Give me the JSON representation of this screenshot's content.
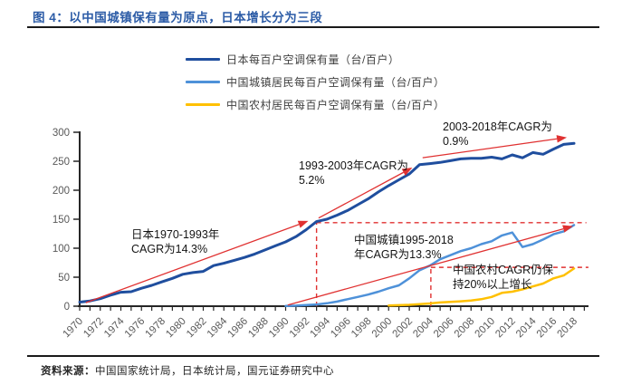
{
  "title": "图 4：以中国城镇保有量为原点，日本增长分为三段",
  "legend": [
    {
      "label": "日本每百户空调保有量（台/百户）",
      "color": "#1F4E9E"
    },
    {
      "label": "中国城镇居民每百户空调保有量（台/百户）",
      "color": "#4E91D9"
    },
    {
      "label": "中国农村居民每百户空调保有量（台/百户）",
      "color": "#FFC000"
    }
  ],
  "chart_data": {
    "type": "line",
    "title": "以中国城镇保有量为原点，日本增长分为三段",
    "xlabel": "",
    "ylabel": "",
    "ylim": [
      0,
      300
    ],
    "yticks": [
      0,
      50,
      100,
      150,
      200,
      250,
      300
    ],
    "xticks": [
      1970,
      1972,
      1974,
      1976,
      1978,
      1980,
      1982,
      1984,
      1986,
      1988,
      1990,
      1992,
      1994,
      1996,
      1998,
      2000,
      2002,
      2004,
      2006,
      2008,
      2010,
      2012,
      2014,
      2016,
      2018
    ],
    "grid": false,
    "trend_color": "#E03131",
    "series": [
      {
        "name": "日本每百户空调保有量（台/百户）",
        "color": "#1F4E9E",
        "width": 3,
        "start_year": 1970,
        "values": [
          7,
          9,
          13,
          19,
          24,
          25,
          31,
          36,
          42,
          48,
          55,
          58,
          60,
          70,
          74,
          79,
          84,
          90,
          97,
          104,
          111,
          120,
          132,
          146,
          150,
          157,
          165,
          175,
          185,
          197,
          208,
          218,
          228,
          244,
          246,
          248,
          251,
          254,
          255,
          255,
          257,
          254,
          261,
          256,
          265,
          262,
          271,
          279,
          281
        ]
      },
      {
        "name": "中国城镇居民每百户空调保有量（台/百户）",
        "color": "#4E91D9",
        "width": 2.5,
        "start_year": 1990,
        "values": [
          0.3,
          1,
          2,
          3,
          5,
          8,
          12,
          16,
          20,
          25,
          31,
          36,
          48,
          62,
          70,
          81,
          88,
          95,
          100,
          107,
          112,
          122,
          127,
          102,
          107,
          115,
          124,
          129,
          140
        ]
      },
      {
        "name": "中国农村居民每百户空调保有量（台/百户）",
        "color": "#FFC000",
        "width": 2.5,
        "start_year": 2000,
        "values": [
          1.3,
          1.7,
          2.3,
          3.5,
          4.7,
          6.4,
          7.3,
          8.5,
          9.8,
          12,
          16,
          23,
          25,
          29,
          34,
          39,
          48,
          53,
          65
        ]
      }
    ],
    "trend_arrows": [
      {
        "x1": 1970.6,
        "y1": 6,
        "x2": 1992.2,
        "y2": 147
      },
      {
        "x1": 1993.2,
        "y1": 152,
        "x2": 2002.3,
        "y2": 239
      },
      {
        "x1": 2003.3,
        "y1": 256,
        "x2": 2017.3,
        "y2": 291
      },
      {
        "x1": 1990.2,
        "y1": 2,
        "x2": 2017.9,
        "y2": 138
      }
    ],
    "dashed_lines": [
      {
        "x1": 1993,
        "y1": 144,
        "x2": 2019.2,
        "y2": 144
      },
      {
        "x1": 1993,
        "y1": 0,
        "x2": 1993,
        "y2": 144
      },
      {
        "x1": 2004.1,
        "y1": 67,
        "x2": 2019.4,
        "y2": 67
      },
      {
        "x1": 2004.1,
        "y1": 0,
        "x2": 2004.1,
        "y2": 67
      }
    ],
    "annotations": [
      {
        "id": "japan-1970-1993",
        "lines": [
          "日本1970-1993年",
          "CAGR为14.3%"
        ]
      },
      {
        "id": "japan-1993-2003",
        "lines": [
          "1993-2003年CAGR为",
          "5.2%"
        ]
      },
      {
        "id": "japan-2003-2018",
        "lines": [
          "2003-2018年CAGR为",
          "0.9%"
        ]
      },
      {
        "id": "china-urban",
        "lines": [
          "中国城镇1995-2018",
          "年CAGR为13.3%"
        ]
      },
      {
        "id": "china-rural",
        "lines": [
          "中国农村CAGR仍保",
          "持20%以上增长"
        ]
      }
    ]
  },
  "footer": {
    "source_label": "资料来源：",
    "source_text": "中国国家统计局，日本统计局，国元证券研究中心"
  }
}
